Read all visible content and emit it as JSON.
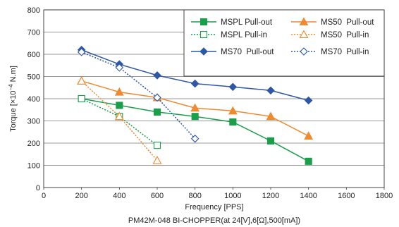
{
  "chart_data": {
    "type": "line",
    "title": "",
    "caption": "PM42M-048 BI-CHOPPER(at 24[V],6[Ω],500[mA])",
    "xlabel": "Frequency [PPS]",
    "ylabel_prefix": "Torque [×10",
    "ylabel_exp": "−4",
    "ylabel_suffix": " N.m]",
    "xlim": [
      0,
      1800
    ],
    "ylim": [
      0,
      800
    ],
    "xticks": [
      0,
      200,
      400,
      600,
      800,
      1000,
      1200,
      1400,
      1600,
      1800
    ],
    "yticks": [
      0,
      100,
      200,
      300,
      400,
      500,
      600,
      700,
      800
    ],
    "grid": "horizontal",
    "legend_position": "top-right",
    "series": [
      {
        "name": "MSPL Pull-out",
        "color": "#1a9e4a",
        "marker": "square",
        "filled": true,
        "dashed": false,
        "x": [
          200,
          400,
          600,
          800,
          1000,
          1200,
          1400
        ],
        "y": [
          400,
          370,
          340,
          320,
          295,
          210,
          118
        ]
      },
      {
        "name": "MS50  Pull-out",
        "color": "#f08a30",
        "marker": "triangle",
        "filled": true,
        "dashed": false,
        "x": [
          200,
          400,
          600,
          800,
          1000,
          1200,
          1400
        ],
        "y": [
          480,
          430,
          405,
          358,
          345,
          320,
          232
        ]
      },
      {
        "name": "MSPL Pull-in",
        "color": "#1a9e4a",
        "marker": "square",
        "filled": false,
        "dashed": true,
        "x": [
          200,
          400,
          600
        ],
        "y": [
          400,
          320,
          190
        ]
      },
      {
        "name": "MS50  Pull-in",
        "color": "#f08a30",
        "marker": "triangle",
        "filled": false,
        "dashed": true,
        "x": [
          200,
          400,
          600
        ],
        "y": [
          480,
          320,
          122
        ]
      },
      {
        "name": "MS70  Pull-out",
        "color": "#2e57a6",
        "marker": "diamond",
        "filled": true,
        "dashed": false,
        "x": [
          200,
          400,
          600,
          800,
          1000,
          1200,
          1400
        ],
        "y": [
          620,
          555,
          505,
          468,
          453,
          437,
          392
        ]
      },
      {
        "name": "MS70  Pull-in",
        "color": "#2e57a6",
        "marker": "diamond",
        "filled": false,
        "dashed": true,
        "x": [
          200,
          400,
          600,
          800
        ],
        "y": [
          610,
          540,
          405,
          220
        ]
      }
    ]
  }
}
